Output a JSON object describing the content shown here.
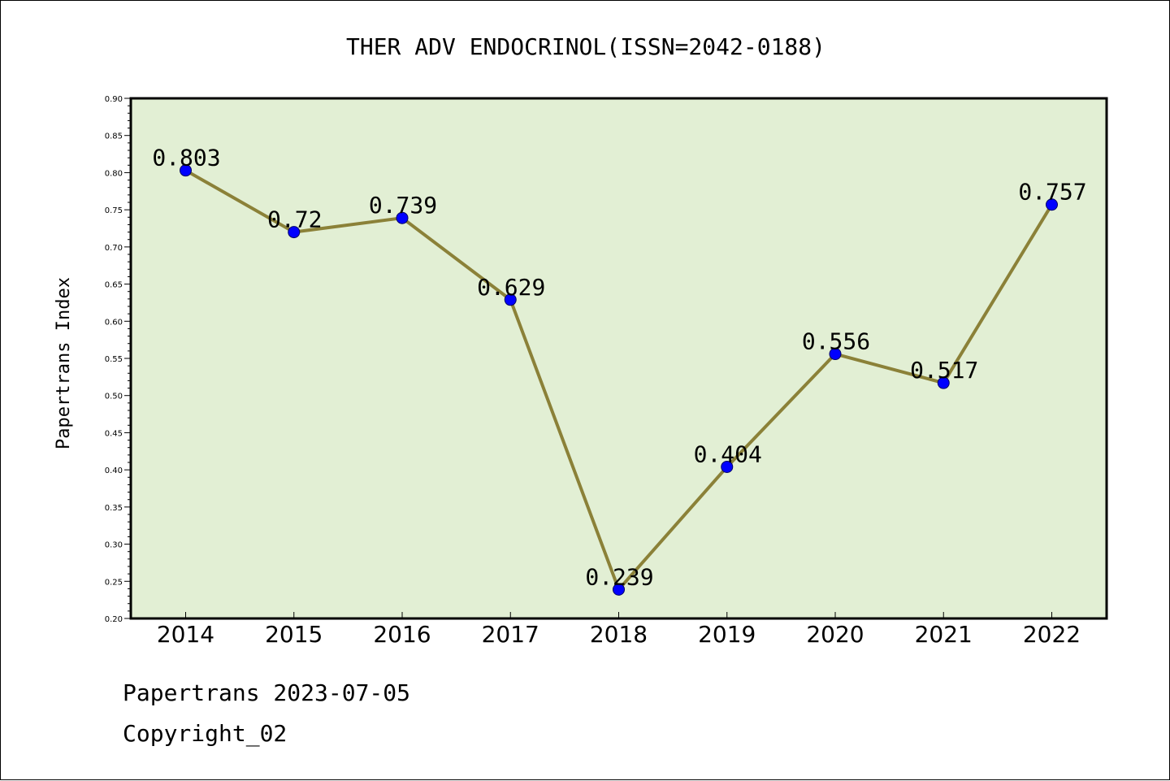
{
  "chart_data": {
    "type": "line",
    "title": "THER ADV ENDOCRINOL(ISSN=2042-0188)",
    "xlabel": "",
    "ylabel": "Papertrans Index",
    "categories": [
      "2014",
      "2015",
      "2016",
      "2017",
      "2018",
      "2019",
      "2020",
      "2021",
      "2022"
    ],
    "series": [
      {
        "values": [
          0.803,
          0.72,
          0.739,
          0.629,
          0.239,
          0.404,
          0.556,
          0.517,
          0.757
        ],
        "labels": [
          "0.803",
          "0.72",
          "0.739",
          "0.629",
          "0.239",
          "0.404",
          "0.556",
          "0.517",
          "0.757"
        ]
      }
    ],
    "ylim": [
      0.2,
      0.9
    ],
    "yticks": [
      "0.20",
      "0.25",
      "0.30",
      "0.35",
      "0.40",
      "0.45",
      "0.50",
      "0.55",
      "0.60",
      "0.65",
      "0.70",
      "0.75",
      "0.80",
      "0.85",
      "0.90"
    ],
    "grid": false,
    "legend": "none",
    "colors": {
      "plot_background": "#e2efd4",
      "line": "#8b8138",
      "marker_fill": "#0000ff",
      "marker_stroke": "#000066",
      "axis": "#000000"
    }
  },
  "footer": {
    "line1": "Papertrans 2023-07-05",
    "line2": "Copyright_02"
  }
}
